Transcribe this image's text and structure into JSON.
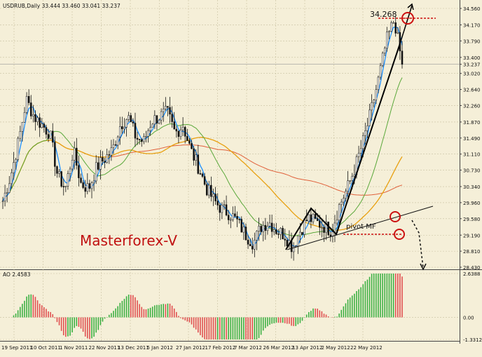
{
  "header": {
    "symbol_info": "USDRUB,Daily  33.444 33.460 33.041 33.237"
  },
  "watermark": "Masterforex-V",
  "annotations": {
    "high_value": "34.268",
    "pivot_label": "pivot MF"
  },
  "price_axis": {
    "ticks": [
      "34.560",
      "34.170",
      "33.790",
      "33.400",
      "33.237",
      "33.020",
      "32.640",
      "32.260",
      "31.870",
      "31.490",
      "31.110",
      "30.730",
      "30.340",
      "29.960",
      "29.580",
      "29.190",
      "28.810",
      "28.430"
    ],
    "current_price": "33.237"
  },
  "indicator": {
    "label": "AO 2.4583",
    "ticks": [
      "2.6388",
      "0.00",
      "-1.3312"
    ]
  },
  "time_axis": {
    "labels": [
      "19 Sep 2011",
      "10 Oct 2011",
      "1 Nov 2011",
      "22 Nov 2011",
      "13 Dec 2011",
      "5 Jan 2012",
      "27 Jan 2012",
      "17 Feb 2012",
      "7 Mar 2012",
      "26 Mar 2012",
      "13 Apr 2012",
      "2 May 2012",
      "22 May 2012"
    ]
  },
  "colors": {
    "background": "#f5efd8",
    "grid": "#c8c0a0",
    "price_line": "#1e90ff",
    "ma_green": "#5aa83a",
    "ma_orange": "#e8a010",
    "ma_red": "#e0603a",
    "ao_up": "#3cb043",
    "ao_down": "#e05050",
    "marker_red": "#cc1111",
    "watermark": "#c01010"
  },
  "chart_data": {
    "type": "candlestick",
    "symbol": "USDRUB",
    "timeframe": "Daily",
    "ohlc_last": {
      "open": 33.444,
      "high": 33.46,
      "low": 33.041,
      "close": 33.237
    },
    "ylim": [
      28.43,
      34.56
    ],
    "x_labels": [
      "19 Sep 2011",
      "10 Oct 2011",
      "1 Nov 2011",
      "22 Nov 2011",
      "13 Dec 2011",
      "5 Jan 2012",
      "27 Jan 2012",
      "17 Feb 2012",
      "7 Mar 2012",
      "26 Mar 2012",
      "13 Apr 2012",
      "2 May 2012",
      "22 May 2012"
    ],
    "approx_closes": [
      30.0,
      30.6,
      31.4,
      32.4,
      32.0,
      31.8,
      31.6,
      30.6,
      30.3,
      31.2,
      30.4,
      30.3,
      30.8,
      31.0,
      31.2,
      31.8,
      32.0,
      31.5,
      31.4,
      31.9,
      32.0,
      32.1,
      31.6,
      31.8,
      31.2,
      30.8,
      30.3,
      30.0,
      29.8,
      29.7,
      29.5,
      29.2,
      29.0,
      29.4,
      29.5,
      29.3,
      29.2,
      28.9,
      29.3,
      29.6,
      29.5,
      29.4,
      29.3,
      29.9,
      30.3,
      30.8,
      31.4,
      32.1,
      32.9,
      33.8,
      34.3,
      33.237
    ],
    "indicator": {
      "name": "AO",
      "last": 2.4583,
      "ylim": [
        -1.3312,
        2.6388
      ]
    }
  }
}
